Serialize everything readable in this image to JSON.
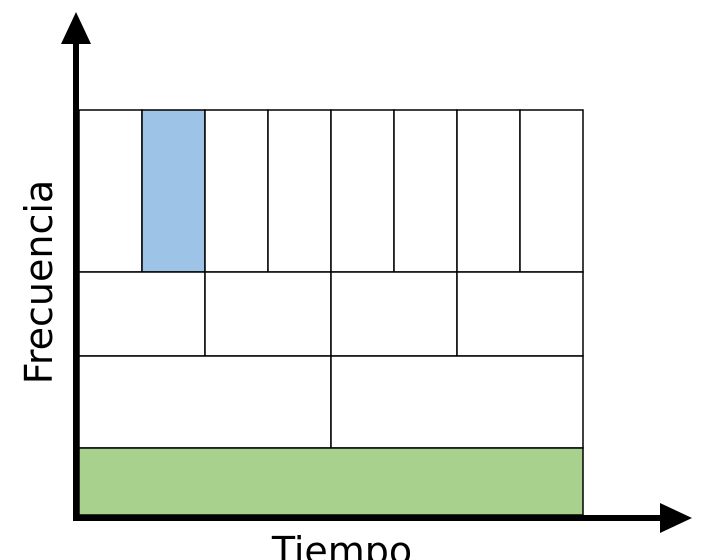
{
  "diagram": {
    "x_axis_label": "Tiempo",
    "y_axis_label": "Frecuencia",
    "colors": {
      "highlight_cell": "#9dc3e6",
      "base_band": "#a9d18e",
      "lines": "#000000",
      "background": "#ffffff"
    },
    "tiling": {
      "description_levels": [
        {
          "level": "top",
          "cells": 8,
          "highlighted_index": 1
        },
        {
          "level": "upper-middle",
          "cells": 4
        },
        {
          "level": "lower-middle",
          "cells": 2
        },
        {
          "level": "bottom",
          "cells": 1,
          "filled": true
        }
      ]
    }
  }
}
